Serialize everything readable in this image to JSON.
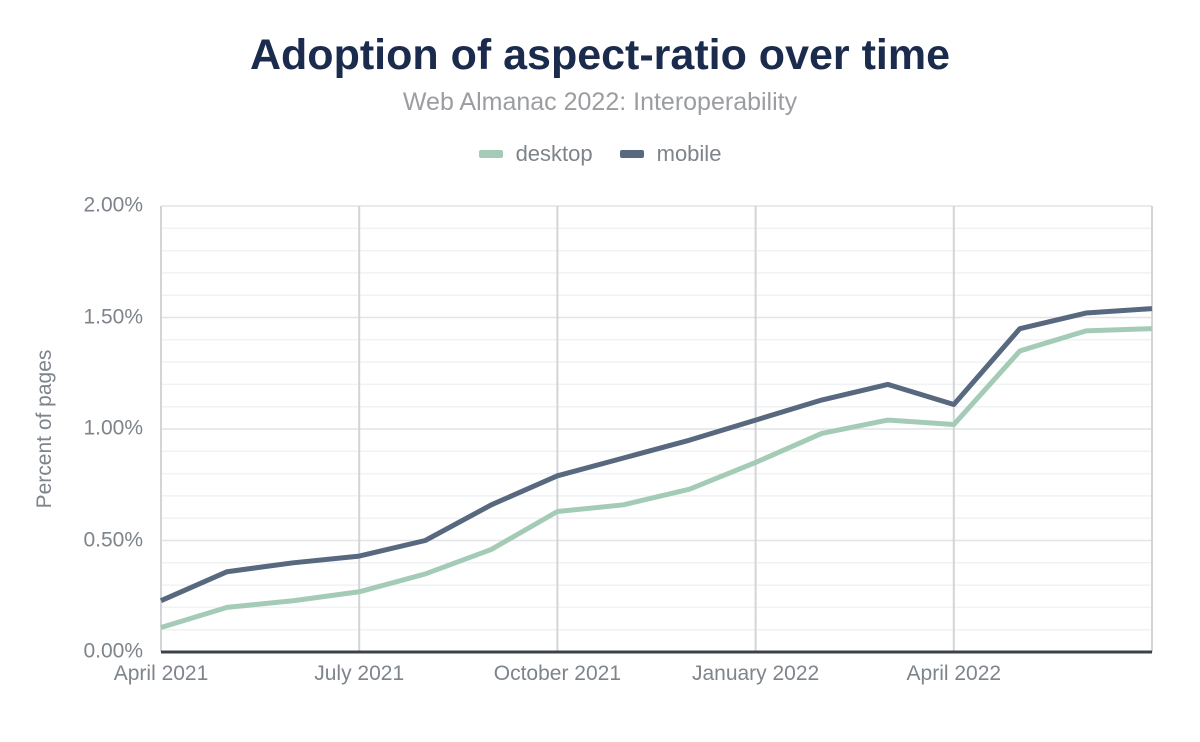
{
  "chart_data": {
    "type": "line",
    "title": "Adoption of aspect-ratio over time",
    "subtitle": "Web Almanac 2022: Interoperability",
    "xlabel": "",
    "ylabel": "Percent of pages",
    "unit": "%",
    "x": [
      "April 2021",
      "May 2021",
      "June 2021",
      "July 2021",
      "August 2021",
      "September 2021",
      "October 2021",
      "November 2021",
      "December 2021",
      "January 2022",
      "February 2022",
      "March 2022",
      "April 2022",
      "May 2022",
      "June 2022",
      "July 2022"
    ],
    "series": [
      {
        "name": "desktop",
        "color": "#a4cbb6",
        "values": [
          0.11,
          0.2,
          0.23,
          0.27,
          0.35,
          0.46,
          0.63,
          0.66,
          0.73,
          0.85,
          0.98,
          1.04,
          1.02,
          1.35,
          1.44,
          1.45
        ]
      },
      {
        "name": "mobile",
        "color": "#57687f",
        "values": [
          0.23,
          0.36,
          0.4,
          0.43,
          0.5,
          0.66,
          0.79,
          0.87,
          0.95,
          1.04,
          1.13,
          1.2,
          1.11,
          1.45,
          1.52,
          1.54
        ]
      }
    ],
    "ylim": [
      0,
      2
    ],
    "ytick_labels": [
      "0.00%",
      "0.50%",
      "1.00%",
      "1.50%",
      "2.00%"
    ],
    "ytick_values": [
      0,
      0.5,
      1.0,
      1.5,
      2.0
    ],
    "y_minor_step": 0.1,
    "xtick_indices": [
      0,
      3,
      6,
      9,
      12
    ],
    "xtick_labels": [
      "April 2021",
      "July 2021",
      "October 2021",
      "January 2022",
      "April 2022"
    ],
    "x_gridline_indices": [
      0,
      3,
      6,
      9,
      12,
      15
    ],
    "grid": true,
    "legend_position": "top"
  },
  "colors": {
    "title": "#1b2b4d",
    "subtitle": "#9b9da0",
    "axis_text": "#7e848b",
    "legend_text": "#7e848b",
    "grid_minor": "#f1f2f3",
    "grid_major": "#e2e4e6",
    "grid_vertical": "#d2d5d8",
    "axis_line": "#3c4147",
    "background": "#ffffff"
  }
}
